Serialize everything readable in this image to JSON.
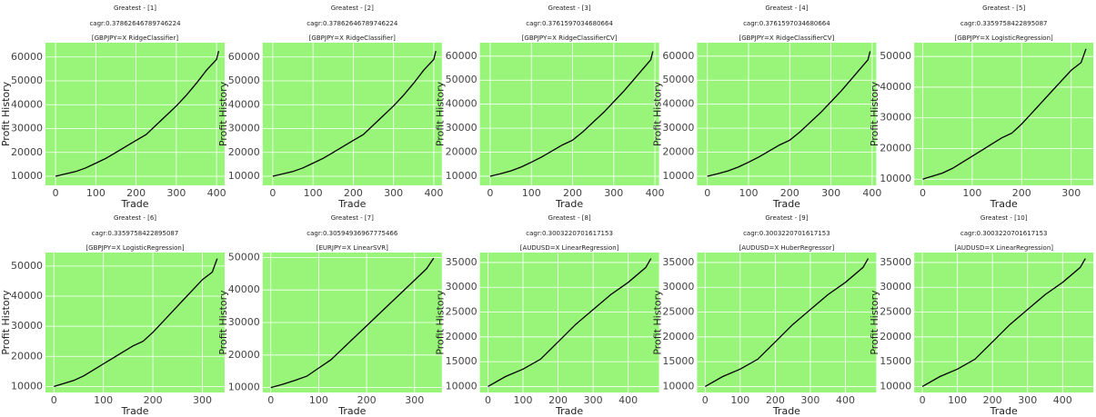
{
  "chart_data": [
    {
      "type": "line",
      "title": "Greatest - [1]",
      "subtitle": "cagr:0.37862646789746224",
      "caption": "[GBPJPY=X RidgeClassifier]",
      "xlabel": "Trade",
      "ylabel": "Profit History",
      "x": [
        0,
        25,
        50,
        75,
        100,
        125,
        150,
        175,
        200,
        225,
        250,
        275,
        300,
        325,
        350,
        375,
        400,
        405
      ],
      "values": [
        10000,
        11000,
        12000,
        13500,
        15500,
        17500,
        20000,
        22500,
        25000,
        27500,
        31500,
        35500,
        39500,
        44000,
        49000,
        54500,
        59000,
        62500
      ],
      "color": "#000000",
      "background": "#98f57a",
      "grid": true,
      "xlim": [
        -25,
        420
      ],
      "ylim": [
        6200,
        66000
      ],
      "xticks": [
        0,
        100,
        200,
        300,
        400
      ],
      "yticks": [
        10000,
        20000,
        30000,
        40000,
        50000,
        60000
      ]
    },
    {
      "type": "line",
      "title": "Greatest - [2]",
      "subtitle": "cagr:0.37862646789746224",
      "caption": "[GBPJPY=X RidgeClassifier]",
      "xlabel": "Trade",
      "ylabel": "Profit History",
      "x": [
        0,
        25,
        50,
        75,
        100,
        125,
        150,
        175,
        200,
        225,
        250,
        275,
        300,
        325,
        350,
        375,
        400,
        405
      ],
      "values": [
        10000,
        11000,
        12000,
        13500,
        15500,
        17500,
        20000,
        22500,
        25000,
        27500,
        31500,
        35500,
        39500,
        44000,
        49000,
        54500,
        59000,
        62500
      ],
      "color": "#000000",
      "background": "#98f57a",
      "grid": true,
      "xlim": [
        -25,
        420
      ],
      "ylim": [
        6200,
        66000
      ],
      "xticks": [
        0,
        100,
        200,
        300,
        400
      ],
      "yticks": [
        10000,
        20000,
        30000,
        40000,
        50000,
        60000
      ]
    },
    {
      "type": "line",
      "title": "Greatest - [3]",
      "subtitle": "cagr:0.3761597034680664",
      "caption": "[GBPJPY=X RidgeClassifierCV]",
      "xlabel": "Trade",
      "ylabel": "Profit History",
      "x": [
        0,
        25,
        50,
        75,
        100,
        125,
        150,
        175,
        200,
        225,
        250,
        275,
        300,
        325,
        350,
        375,
        390,
        395
      ],
      "values": [
        10000,
        11000,
        12200,
        13800,
        15800,
        18000,
        20500,
        23000,
        25000,
        28500,
        32500,
        36500,
        41000,
        45500,
        50500,
        55500,
        58500,
        62000
      ],
      "color": "#000000",
      "background": "#98f57a",
      "grid": true,
      "xlim": [
        -25,
        410
      ],
      "ylim": [
        6200,
        65600
      ],
      "xticks": [
        0,
        100,
        200,
        300,
        400
      ],
      "yticks": [
        10000,
        20000,
        30000,
        40000,
        50000,
        60000
      ]
    },
    {
      "type": "line",
      "title": "Greatest - [4]",
      "subtitle": "cagr:0.3761597034680664",
      "caption": "[GBPJPY=X RidgeClassifierCV]",
      "xlabel": "Trade",
      "ylabel": "Profit History",
      "x": [
        0,
        25,
        50,
        75,
        100,
        125,
        150,
        175,
        200,
        225,
        250,
        275,
        300,
        325,
        350,
        375,
        390,
        395
      ],
      "values": [
        10000,
        11000,
        12200,
        13800,
        15800,
        18000,
        20500,
        23000,
        25000,
        28500,
        32500,
        36500,
        41000,
        45500,
        50500,
        55500,
        58500,
        62000
      ],
      "color": "#000000",
      "background": "#98f57a",
      "grid": true,
      "xlim": [
        -25,
        410
      ],
      "ylim": [
        6200,
        65600
      ],
      "xticks": [
        0,
        100,
        200,
        300,
        400
      ],
      "yticks": [
        10000,
        20000,
        30000,
        40000,
        50000,
        60000
      ]
    },
    {
      "type": "line",
      "title": "Greatest - [5]",
      "subtitle": "cagr:0.3359758422895087",
      "caption": "[GBPJPY=X LogisticRegression]",
      "xlabel": "Trade",
      "ylabel": "Profit History",
      "x": [
        0,
        20,
        40,
        60,
        80,
        100,
        120,
        140,
        160,
        180,
        200,
        220,
        240,
        260,
        280,
        300,
        320,
        330
      ],
      "values": [
        10000,
        11000,
        12000,
        13500,
        15500,
        17500,
        19500,
        21500,
        23500,
        25000,
        28000,
        31500,
        35000,
        38500,
        42000,
        45500,
        48000,
        52500
      ],
      "color": "#000000",
      "background": "#98f57a",
      "grid": true,
      "xlim": [
        -17,
        345
      ],
      "ylim": [
        8000,
        54500
      ],
      "xticks": [
        0,
        100,
        200,
        300
      ],
      "yticks": [
        10000,
        20000,
        30000,
        40000,
        50000
      ]
    },
    {
      "type": "line",
      "title": "Greatest - [6]",
      "subtitle": "cagr:0.3359758422895087",
      "caption": "[GBPJPY=X LogisticRegression]",
      "xlabel": "Trade",
      "ylabel": "Profit History",
      "x": [
        0,
        20,
        40,
        60,
        80,
        100,
        120,
        140,
        160,
        180,
        200,
        220,
        240,
        260,
        280,
        300,
        320,
        330
      ],
      "values": [
        10000,
        11000,
        12000,
        13500,
        15500,
        17500,
        19500,
        21500,
        23500,
        25000,
        28000,
        31500,
        35000,
        38500,
        42000,
        45500,
        48000,
        52500
      ],
      "color": "#000000",
      "background": "#98f57a",
      "grid": true,
      "xlim": [
        -17,
        345
      ],
      "ylim": [
        8000,
        54500
      ],
      "xticks": [
        0,
        100,
        200,
        300
      ],
      "yticks": [
        10000,
        20000,
        30000,
        40000,
        50000
      ]
    },
    {
      "type": "line",
      "title": "Greatest - [7]",
      "subtitle": "cagr:0.30594936967775466",
      "caption": "[EURJPY=X LinearSVR]",
      "xlabel": "Trade",
      "ylabel": "Profit History",
      "x": [
        0,
        25,
        50,
        75,
        100,
        125,
        150,
        175,
        200,
        225,
        250,
        275,
        300,
        325,
        340
      ],
      "values": [
        10000,
        11000,
        12200,
        13500,
        16000,
        18500,
        22000,
        25500,
        29000,
        32500,
        36000,
        39500,
        43000,
        46500,
        49800
      ],
      "color": "#000000",
      "background": "#98f57a",
      "grid": true,
      "xlim": [
        -17,
        357
      ],
      "ylim": [
        8500,
        51500
      ],
      "xticks": [
        0,
        100,
        200,
        300
      ],
      "yticks": [
        10000,
        20000,
        30000,
        40000,
        50000
      ]
    },
    {
      "type": "line",
      "title": "Greatest - [8]",
      "subtitle": "cagr:0.3003220701617153",
      "caption": "[AUDUSD=X LinearRegression]",
      "xlabel": "Trade",
      "ylabel": "Profit History",
      "x": [
        0,
        50,
        100,
        150,
        200,
        250,
        300,
        350,
        400,
        450,
        465
      ],
      "values": [
        10000,
        12000,
        13500,
        15500,
        19000,
        22500,
        25500,
        28500,
        31000,
        34000,
        35800
      ],
      "color": "#000000",
      "background": "#98f57a",
      "grid": true,
      "xlim": [
        -23,
        488
      ],
      "ylim": [
        8800,
        37000
      ],
      "xticks": [
        0,
        100,
        200,
        300,
        400
      ],
      "yticks": [
        10000,
        15000,
        20000,
        25000,
        30000,
        35000
      ]
    },
    {
      "type": "line",
      "title": "Greatest - [9]",
      "subtitle": "cagr:0.3003220701617153",
      "caption": "[AUDUSD=X HuberRegressor]",
      "xlabel": "Trade",
      "ylabel": "Profit History",
      "x": [
        0,
        50,
        100,
        150,
        200,
        250,
        300,
        350,
        400,
        450,
        465
      ],
      "values": [
        10000,
        12000,
        13500,
        15500,
        19000,
        22500,
        25500,
        28500,
        31000,
        34000,
        35800
      ],
      "color": "#000000",
      "background": "#98f57a",
      "grid": true,
      "xlim": [
        -23,
        488
      ],
      "ylim": [
        8800,
        37000
      ],
      "xticks": [
        0,
        100,
        200,
        300,
        400
      ],
      "yticks": [
        10000,
        15000,
        20000,
        25000,
        30000,
        35000
      ]
    },
    {
      "type": "line",
      "title": "Greatest - [10]",
      "subtitle": "cagr:0.3003220701617153",
      "caption": "[AUDUSD=X LinearRegression]",
      "xlabel": "Trade",
      "ylabel": "Profit History",
      "x": [
        0,
        50,
        100,
        150,
        200,
        250,
        300,
        350,
        400,
        450,
        465
      ],
      "values": [
        10000,
        12000,
        13500,
        15500,
        19000,
        22500,
        25500,
        28500,
        31000,
        34000,
        35800
      ],
      "color": "#000000",
      "background": "#98f57a",
      "grid": true,
      "xlim": [
        -23,
        488
      ],
      "ylim": [
        8800,
        37000
      ],
      "xticks": [
        0,
        100,
        200,
        300,
        400
      ],
      "yticks": [
        10000,
        15000,
        20000,
        25000,
        30000,
        35000
      ]
    }
  ]
}
